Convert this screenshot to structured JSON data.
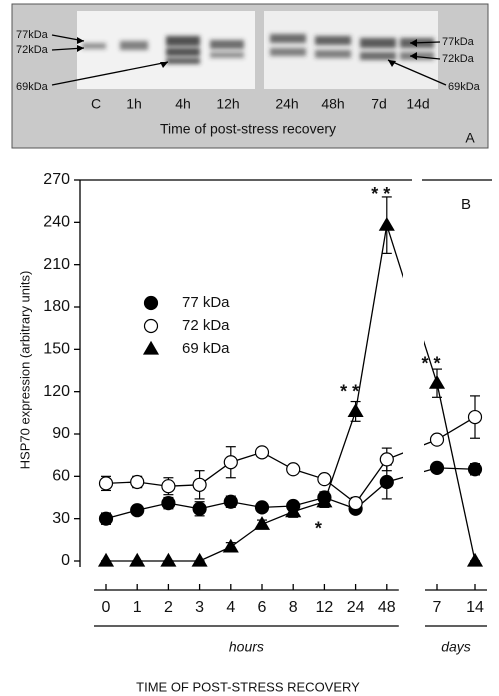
{
  "panel_a": {
    "labels_left": [
      "77kDa",
      "72kDa",
      "69kDa"
    ],
    "labels_right": [
      "77kDa",
      "72kDa",
      "69kDa"
    ],
    "lanes": [
      "C",
      "1h",
      "4h",
      "12h",
      "24h",
      "48h",
      "7d",
      "14d"
    ],
    "caption": "Time of post-stress recovery",
    "letter": "A"
  },
  "chart_data": {
    "type": "line",
    "panel_letter": "B",
    "ylabel": "HSP70 expression  (arbitrary units)",
    "xlabel": "TIME OF POST-STRESS RECOVERY",
    "categories": [
      "0",
      "1",
      "2",
      "3",
      "4",
      "6",
      "8",
      "12",
      "24",
      "48",
      "7",
      "14"
    ],
    "groups": [
      {
        "label": "hours",
        "from": 0,
        "to": 9
      },
      {
        "label": "days",
        "from": 10,
        "to": 11
      }
    ],
    "ylim": [
      0,
      270
    ],
    "yticks": [
      0,
      30,
      60,
      90,
      120,
      150,
      180,
      210,
      240,
      270
    ],
    "series": [
      {
        "name": "77 kDa",
        "color": "#000000",
        "fill": "#000000",
        "marker": "circle",
        "values": [
          30,
          36,
          41,
          37,
          42,
          38,
          39,
          45,
          37,
          56,
          66,
          65
        ],
        "errors": [
          4,
          3,
          4,
          5,
          4,
          3,
          3,
          4,
          3,
          12,
          3,
          4
        ]
      },
      {
        "name": "72 kDa",
        "color": "#000000",
        "fill": "#ffffff",
        "marker": "circle",
        "values": [
          55,
          56,
          53,
          54,
          70,
          77,
          65,
          58,
          41,
          72,
          86,
          102
        ],
        "errors": [
          5,
          4,
          6,
          10,
          11,
          3,
          3,
          3,
          4,
          8,
          3,
          15
        ]
      },
      {
        "name": "69 kDa",
        "color": "#000000",
        "fill": "#000000",
        "marker": "triangle",
        "values": [
          0,
          0,
          0,
          0,
          10,
          26,
          35,
          42,
          106,
          238,
          126,
          0
        ],
        "errors": [
          0,
          0,
          0,
          0,
          3,
          3,
          4,
          4,
          7,
          20,
          10,
          0
        ]
      }
    ],
    "annotations": [
      {
        "text": "*",
        "index": 7,
        "y": 25
      },
      {
        "text": "* *",
        "index": 8,
        "y": 122
      },
      {
        "text": "* *",
        "index": 9,
        "y": 262
      },
      {
        "text": "* *",
        "index": 10,
        "y": 142
      }
    ]
  }
}
